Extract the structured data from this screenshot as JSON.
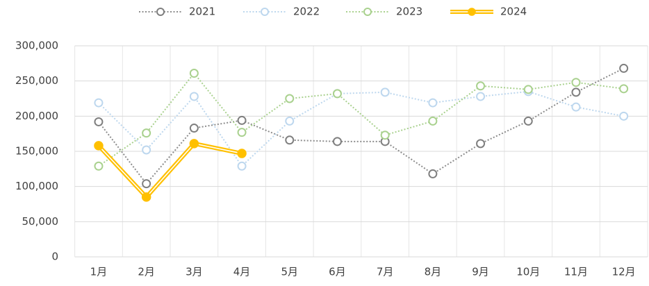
{
  "chart_data": {
    "type": "line",
    "categories": [
      "1月",
      "2月",
      "3月",
      "4月",
      "5月",
      "6月",
      "7月",
      "8月",
      "9月",
      "10月",
      "11月",
      "12月"
    ],
    "series": [
      {
        "name": "2021",
        "color": "#8c8c8c",
        "style": "dotted",
        "marker": "open",
        "values": [
          192000,
          104000,
          183000,
          194000,
          166000,
          164000,
          164000,
          118000,
          161000,
          193000,
          234000,
          268000
        ]
      },
      {
        "name": "2022",
        "color": "#bdd7ee",
        "style": "dotted",
        "marker": "open",
        "values": [
          219000,
          152000,
          228000,
          129000,
          193000,
          232000,
          234000,
          219000,
          228000,
          235000,
          213000,
          200000
        ]
      },
      {
        "name": "2023",
        "color": "#a9d18e",
        "style": "dotted",
        "marker": "open",
        "values": [
          129000,
          176000,
          261000,
          177000,
          225000,
          232000,
          173000,
          193000,
          243000,
          238000,
          248000,
          239000
        ]
      },
      {
        "name": "2024",
        "color": "#ffc000",
        "style": "double",
        "marker": "filled",
        "values": [
          158000,
          85000,
          161000,
          147000,
          null,
          null,
          null,
          null,
          null,
          null,
          null,
          null
        ]
      }
    ],
    "ylim": [
      0,
      300000
    ],
    "yticks": [
      0,
      {
        "value": 50000,
        "label": "50,000"
      },
      {
        "value": 100000,
        "label": "100,000"
      },
      {
        "value": 150000,
        "label": "150,000"
      },
      {
        "value": 200000,
        "label": "200,000"
      },
      {
        "value": 250000,
        "label": "250,000"
      },
      {
        "value": 300000,
        "label": "300,000"
      }
    ],
    "grid": true,
    "legend": "top"
  }
}
